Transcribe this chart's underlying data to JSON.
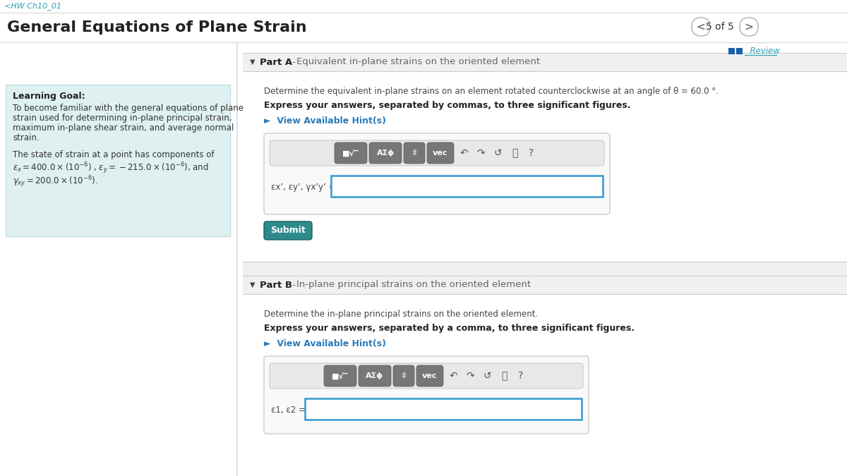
{
  "white": "#ffffff",
  "teal": "#2E8B8B",
  "light_teal_bg": "#dff0f0",
  "mid_gray": "#f0f0f0",
  "light_gray": "#f5f5f5",
  "header_text": "<HW Ch10_01",
  "title_text": "General Equations of Plane Strain",
  "nav_text": "5 of 5",
  "learning_goal_title": "Learning Goal:",
  "learning_goal_body1": "To become familiar with the general equations of plane",
  "learning_goal_body2": "strain used for determining in-plane principal strain,",
  "learning_goal_body3": "maximum in-plane shear strain, and average normal",
  "learning_goal_body4": "strain.",
  "state_line1": "The state of strain at a point has components of",
  "review_text": "  Review",
  "partA_label": "Part A",
  "partA_dash": " - ",
  "partA_desc": "Equivalent in-plane strains on the oriented element",
  "partA_instr": "Determine the equivalent in-plane strains on an element rotated counterclockwise at an angle of θ = 60.0 °.",
  "partA_bold": "Express your answers, separated by commas, to three significant figures.",
  "hint_text": "►  View Available Hint(s)",
  "partA_eq": "εx’, εy’, γx’y’ =",
  "submit_text": "Submit",
  "partB_label": "Part B",
  "partB_dash": " - ",
  "partB_desc": "In-plane principal strains on the oriented element",
  "partB_instr": "Determine the in-plane principal strains on the oriented element.",
  "partB_bold": "Express your answers, separated by a comma, to three significant figures.",
  "partB_eq": "ε1, ε2 ="
}
